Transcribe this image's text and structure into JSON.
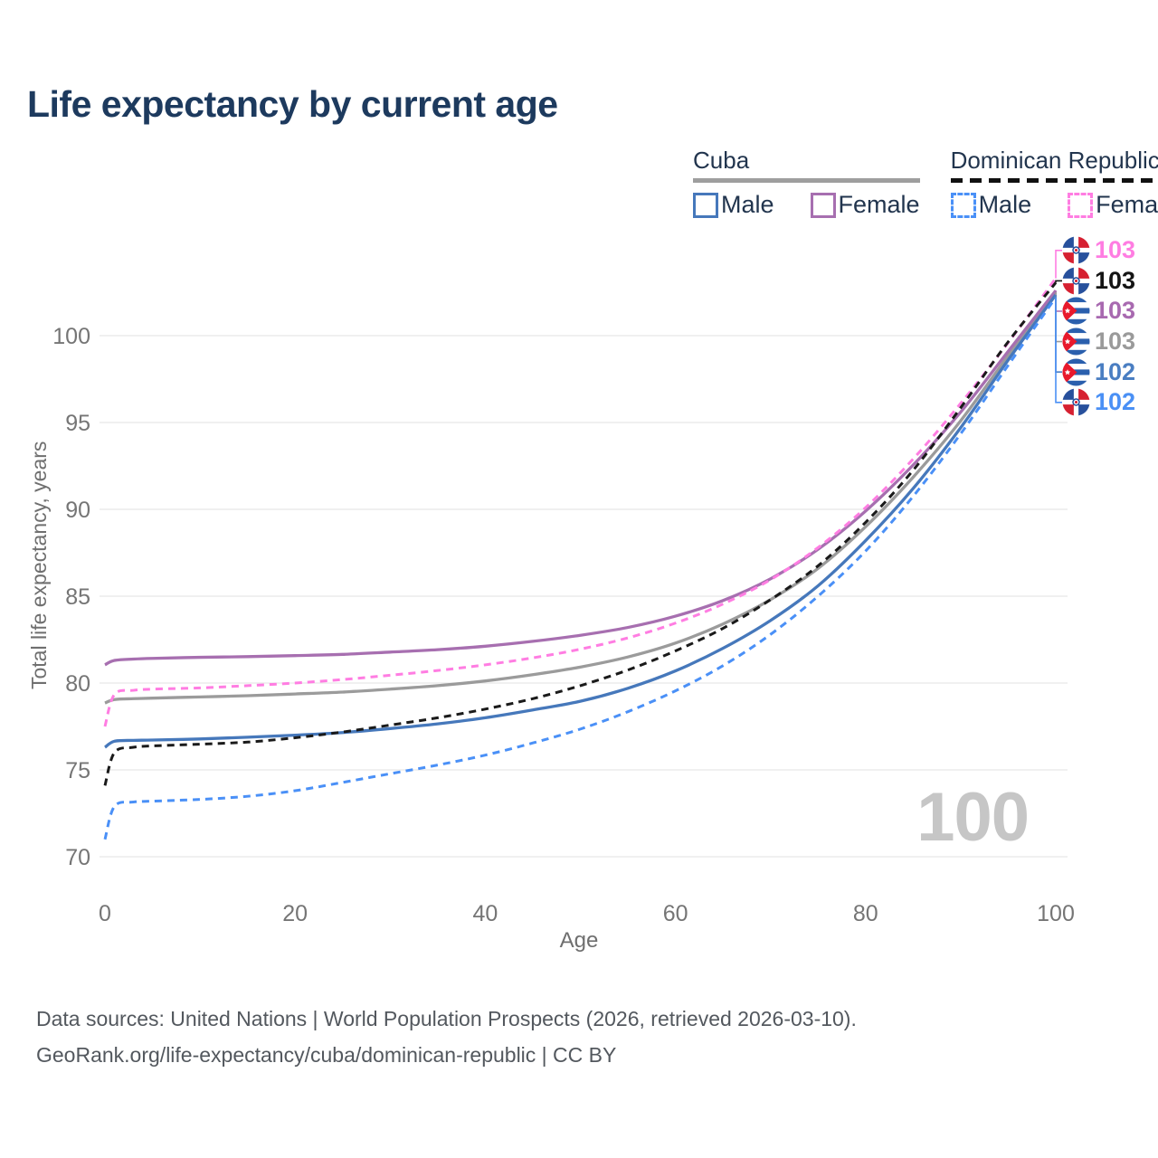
{
  "title": "Life expectancy by current age",
  "watermark": "100",
  "footer": {
    "line1": "Data sources: United Nations | World Population Prospects (2026, retrieved 2026-03-10).",
    "line2": "GeoRank.org/life-expectancy/cuba/dominican-republic | CC BY"
  },
  "legend": {
    "groups": [
      {
        "id": "cuba",
        "title": "Cuba",
        "underline": "solid",
        "underline_color": "#9e9e9e",
        "items": [
          {
            "label": "Male",
            "color": "#4678bb",
            "dash": false
          },
          {
            "label": "Female",
            "color": "#a76fb0",
            "dash": false
          }
        ]
      },
      {
        "id": "dominican-republic",
        "title": "Dominican Republic",
        "underline": "dashed",
        "underline_color": "#111111",
        "items": [
          {
            "label": "Male",
            "color": "#4a90f7",
            "dash": true
          },
          {
            "label": "Female",
            "color": "#ff7de2",
            "dash": true
          }
        ]
      }
    ]
  },
  "chart_data": {
    "type": "line",
    "title": "Life expectancy by current age",
    "xlabel": "Age",
    "ylabel": "Total life expectancy, years",
    "xlim": [
      0,
      100
    ],
    "ylim": [
      70,
      104
    ],
    "xticks": [
      0,
      20,
      40,
      60,
      80,
      100
    ],
    "yticks": [
      70,
      75,
      80,
      85,
      90,
      95,
      100
    ],
    "grid": "horizontal",
    "x": [
      0,
      1,
      3,
      5,
      10,
      15,
      20,
      25,
      30,
      35,
      40,
      45,
      50,
      55,
      60,
      65,
      70,
      75,
      80,
      85,
      90,
      95,
      100
    ],
    "series": [
      {
        "id": "cuba_total",
        "name": "Cuba Total",
        "color": "#9b9b9b",
        "dash": false,
        "values": [
          78.85,
          79.05,
          79.1,
          79.13,
          79.2,
          79.27,
          79.37,
          79.48,
          79.65,
          79.85,
          80.12,
          80.48,
          80.92,
          81.5,
          82.3,
          83.4,
          84.8,
          86.6,
          89.0,
          91.85,
          95.1,
          98.85,
          102.5
        ]
      },
      {
        "id": "cuba_female",
        "name": "Cuba Female",
        "color": "#a76fb0",
        "dash": false,
        "values": [
          81.05,
          81.3,
          81.38,
          81.42,
          81.48,
          81.52,
          81.58,
          81.65,
          81.78,
          81.92,
          82.12,
          82.4,
          82.75,
          83.2,
          83.85,
          84.75,
          86.0,
          87.7,
          89.9,
          92.55,
          95.6,
          99.1,
          102.6
        ]
      },
      {
        "id": "cuba_male",
        "name": "Cuba Male",
        "color": "#4678bb",
        "dash": false,
        "values": [
          76.3,
          76.65,
          76.7,
          76.72,
          76.78,
          76.88,
          77.0,
          77.15,
          77.38,
          77.65,
          78.0,
          78.45,
          78.95,
          79.7,
          80.7,
          82.0,
          83.6,
          85.6,
          88.2,
          91.2,
          94.7,
          98.6,
          102.35
        ]
      },
      {
        "id": "dr_female",
        "name": "Dominican Republic Female",
        "color": "#ff7de2",
        "dash": true,
        "values": [
          77.5,
          79.35,
          79.58,
          79.65,
          79.72,
          79.85,
          80.0,
          80.2,
          80.45,
          80.72,
          81.05,
          81.45,
          81.95,
          82.6,
          83.45,
          84.55,
          85.95,
          87.8,
          90.1,
          92.9,
          96.1,
          99.6,
          103.3
        ]
      },
      {
        "id": "dr_total",
        "name": "Dominican Republic Total",
        "color": "#1a1a1a",
        "dash": true,
        "values": [
          74.1,
          76.0,
          76.3,
          76.38,
          76.48,
          76.6,
          76.85,
          77.18,
          77.58,
          78.0,
          78.5,
          79.1,
          79.85,
          80.75,
          81.85,
          83.15,
          84.8,
          86.75,
          89.25,
          92.25,
          95.85,
          99.65,
          103.05
        ]
      },
      {
        "id": "dr_male",
        "name": "Dominican Republic Male",
        "color": "#4a90f7",
        "dash": true,
        "values": [
          71.0,
          72.9,
          73.15,
          73.2,
          73.3,
          73.48,
          73.8,
          74.28,
          74.78,
          75.28,
          75.85,
          76.55,
          77.35,
          78.35,
          79.55,
          81.0,
          82.8,
          85.0,
          87.6,
          90.75,
          94.35,
          98.3,
          102.2
        ]
      }
    ],
    "end_labels": [
      {
        "series": "dr_female",
        "flag": "do",
        "value": "103",
        "color": "#ff7de2"
      },
      {
        "series": "dr_total",
        "flag": "do",
        "value": "103",
        "color": "#141414"
      },
      {
        "series": "cuba_female",
        "flag": "cu",
        "value": "103",
        "color": "#a869b0"
      },
      {
        "series": "cuba_total",
        "flag": "cu",
        "value": "103",
        "color": "#9a9a9a"
      },
      {
        "series": "cuba_male",
        "flag": "cu",
        "value": "102",
        "color": "#4a7ec2"
      },
      {
        "series": "dr_male",
        "flag": "do",
        "value": "102",
        "color": "#4a90f5"
      }
    ],
    "colors": {
      "grid": "#e8e8e8",
      "tick": "#757575"
    }
  }
}
